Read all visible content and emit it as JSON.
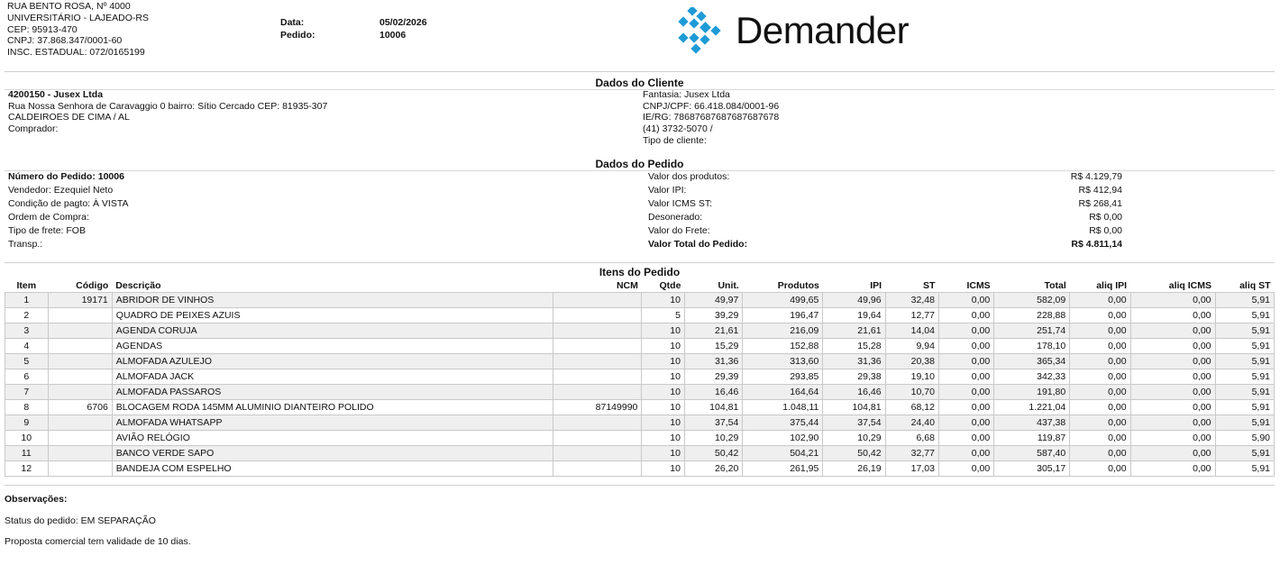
{
  "company": {
    "address1": "RUA BENTO ROSA, Nº 4000",
    "address2": "UNIVERSITÁRIO - LAJEADO-RS",
    "cep": "CEP: 95913-470",
    "cnpj": "CNPJ: 37.868.347/0001-60",
    "ie": "INSC. ESTADUAL: 072/0165199"
  },
  "meta": {
    "data_label": "Data:",
    "data_value": "05/02/2026",
    "pedido_label": "Pedido:",
    "pedido_value": "10006"
  },
  "logo": {
    "text": "Demander",
    "color": "#1e9bd7"
  },
  "cliente": {
    "title": "Dados do Cliente",
    "name": "4200150 - Jusex Ltda",
    "address": "Rua Nossa Senhora de Caravaggio 0 bairro: Sítio Cercado CEP: 81935-307",
    "city": "CALDEIROES DE CIMA / AL",
    "comprador": "Comprador:",
    "fantasia": "Fantasia: Jusex Ltda",
    "cnpj": "CNPJ/CPF: 66.418.084/0001-96",
    "ie": "IE/RG: 78687687687687687678",
    "phone": "(41) 3732-5070 /",
    "tipo": "Tipo de cliente:"
  },
  "pedido": {
    "title": "Dados do Pedido",
    "numero": "Número do Pedido: 10006",
    "vendedor": "Vendedor: Ezequiel Neto",
    "condicao": "Condição de pagto: À VISTA",
    "ordem": "Ordem de Compra:",
    "frete_tipo": "Tipo de frete: FOB",
    "transp": "Transp.:",
    "valores": [
      {
        "label": "Valor dos produtos:",
        "value": "R$ 4.129,79"
      },
      {
        "label": "Valor IPI:",
        "value": "R$ 412,94"
      },
      {
        "label": "Valor ICMS ST:",
        "value": "R$ 268,41"
      },
      {
        "label": "Desonerado:",
        "value": "R$ 0,00"
      },
      {
        "label": "Valor do Frete:",
        "value": "R$ 0,00"
      },
      {
        "label": "Valor Total do Pedido:",
        "value": "R$ 4.811,14"
      }
    ]
  },
  "itens": {
    "title": "Itens do Pedido",
    "headers": [
      "Item",
      "Código",
      "Descrição",
      "NCM",
      "Qtde",
      "Unit.",
      "Produtos",
      "IPI",
      "ST",
      "ICMS",
      "Total",
      "aliq IPI",
      "aliq ICMS",
      "aliq ST"
    ],
    "rows": [
      [
        "1",
        "19171",
        "ABRIDOR DE VINHOS",
        "",
        "10",
        "49,97",
        "499,65",
        "49,96",
        "32,48",
        "0,00",
        "582,09",
        "0,00",
        "0,00",
        "5,91"
      ],
      [
        "2",
        "",
        "QUADRO DE PEIXES AZUIS",
        "",
        "5",
        "39,29",
        "196,47",
        "19,64",
        "12,77",
        "0,00",
        "228,88",
        "0,00",
        "0,00",
        "5,91"
      ],
      [
        "3",
        "",
        "AGENDA CORUJA",
        "",
        "10",
        "21,61",
        "216,09",
        "21,61",
        "14,04",
        "0,00",
        "251,74",
        "0,00",
        "0,00",
        "5,91"
      ],
      [
        "4",
        "",
        "AGENDAS",
        "",
        "10",
        "15,29",
        "152,88",
        "15,28",
        "9,94",
        "0,00",
        "178,10",
        "0,00",
        "0,00",
        "5,91"
      ],
      [
        "5",
        "",
        "ALMOFADA AZULEJO",
        "",
        "10",
        "31,36",
        "313,60",
        "31,36",
        "20,38",
        "0,00",
        "365,34",
        "0,00",
        "0,00",
        "5,91"
      ],
      [
        "6",
        "",
        "ALMOFADA JACK",
        "",
        "10",
        "29,39",
        "293,85",
        "29,38",
        "19,10",
        "0,00",
        "342,33",
        "0,00",
        "0,00",
        "5,91"
      ],
      [
        "7",
        "",
        "ALMOFADA PASSAROS",
        "",
        "10",
        "16,46",
        "164,64",
        "16,46",
        "10,70",
        "0,00",
        "191,80",
        "0,00",
        "0,00",
        "5,91"
      ],
      [
        "8",
        "6706",
        "BLOCAGEM RODA 145MM ALUMINIO DIANTEIRO POLIDO",
        "87149990",
        "10",
        "104,81",
        "1.048,11",
        "104,81",
        "68,12",
        "0,00",
        "1.221,04",
        "0,00",
        "0,00",
        "5,91"
      ],
      [
        "9",
        "",
        "ALMOFADA WHATSAPP",
        "",
        "10",
        "37,54",
        "375,44",
        "37,54",
        "24,40",
        "0,00",
        "437,38",
        "0,00",
        "0,00",
        "5,91"
      ],
      [
        "10",
        "",
        "AVIÃO RELÓGIO",
        "",
        "10",
        "10,29",
        "102,90",
        "10,29",
        "6,68",
        "0,00",
        "119,87",
        "0,00",
        "0,00",
        "5,90"
      ],
      [
        "11",
        "",
        "BANCO VERDE SAPO",
        "",
        "10",
        "50,42",
        "504,21",
        "50,42",
        "32,77",
        "0,00",
        "587,40",
        "0,00",
        "0,00",
        "5,91"
      ],
      [
        "12",
        "",
        "BANDEJA COM ESPELHO",
        "",
        "10",
        "26,20",
        "261,95",
        "26,19",
        "17,03",
        "0,00",
        "305,17",
        "0,00",
        "0,00",
        "5,91"
      ]
    ]
  },
  "footer": {
    "obs_label": "Observações:",
    "status": "Status do pedido: EM SEPARAÇÃO",
    "validade": "Proposta comercial tem validade de 10 dias."
  }
}
